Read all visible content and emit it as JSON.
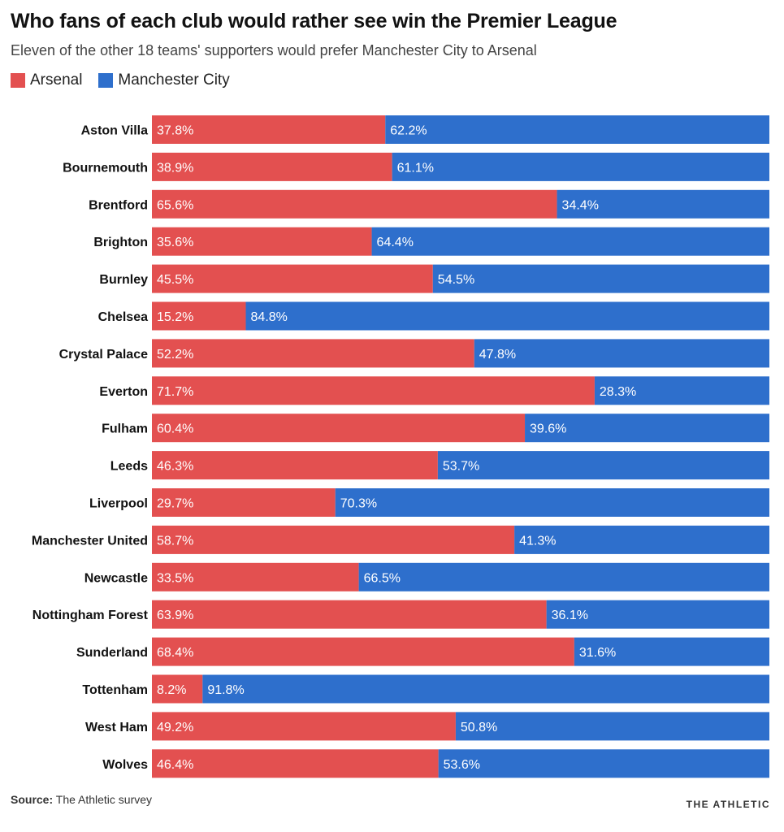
{
  "title": "Who fans of each club would rather see win the Premier League",
  "subtitle": "Eleven of the other 18 teams' supporters would prefer Manchester City to Arsenal",
  "source_label": "Source:",
  "source_text": " The Athletic survey",
  "brand": "THE ATHLETIC",
  "colors": {
    "arsenal": "#e35050",
    "city": "#2e6fcc"
  },
  "chart_data": {
    "type": "bar",
    "stacked": true,
    "orientation": "horizontal",
    "xlim": [
      0,
      100
    ],
    "categories": [
      "Aston Villa",
      "Bournemouth",
      "Brentford",
      "Brighton",
      "Burnley",
      "Chelsea",
      "Crystal Palace",
      "Everton",
      "Fulham",
      "Leeds",
      "Liverpool",
      "Manchester United",
      "Newcastle",
      "Nottingham Forest",
      "Sunderland",
      "Tottenham",
      "West Ham",
      "Wolves"
    ],
    "series": [
      {
        "name": "Arsenal",
        "values": [
          37.8,
          38.9,
          65.6,
          35.6,
          45.5,
          15.2,
          52.2,
          71.7,
          60.4,
          46.3,
          29.7,
          58.7,
          33.5,
          63.9,
          68.4,
          8.2,
          49.2,
          46.4
        ]
      },
      {
        "name": "Manchester City",
        "values": [
          62.2,
          61.1,
          34.4,
          64.4,
          54.5,
          84.8,
          47.8,
          28.3,
          39.6,
          53.7,
          70.3,
          41.3,
          66.5,
          36.1,
          31.6,
          91.8,
          50.8,
          53.6
        ]
      }
    ]
  }
}
